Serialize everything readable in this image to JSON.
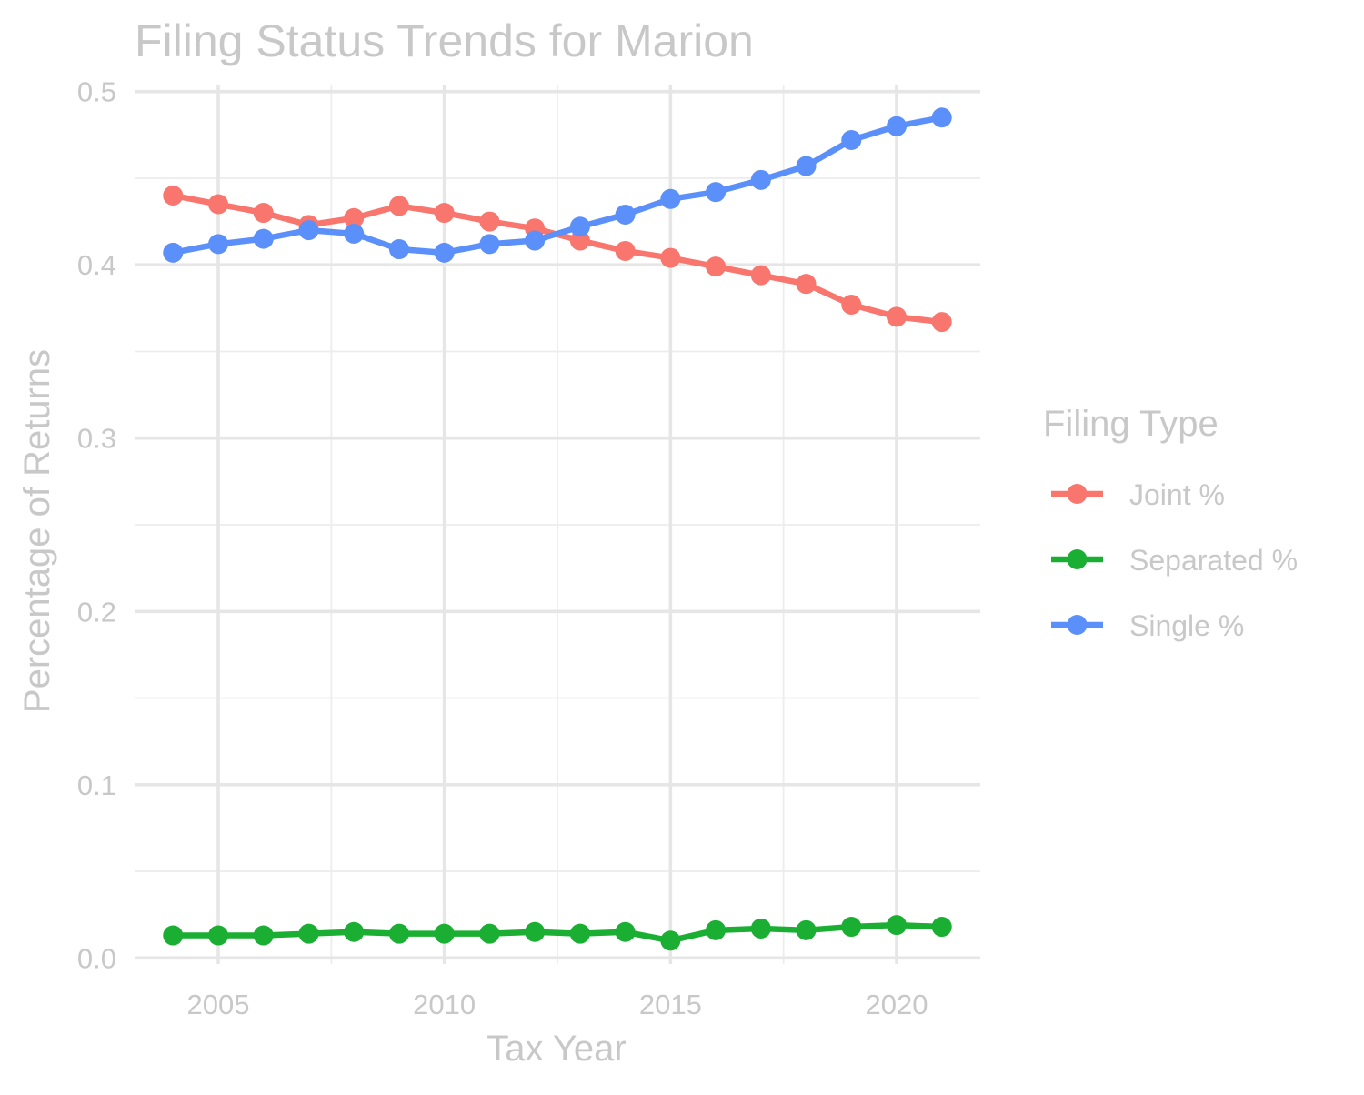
{
  "chart_data": {
    "type": "line",
    "title": "Filing Status Trends for Marion",
    "xlabel": "Tax Year",
    "ylabel": "Percentage of Returns",
    "xlim": [
      2003.15,
      2021.85
    ],
    "ylim": [
      -0.0035,
      0.5035
    ],
    "x_ticks": [
      2005,
      2010,
      2015,
      2020
    ],
    "x_tick_labels": [
      "2005",
      "2010",
      "2015",
      "2020"
    ],
    "x_minor_ticks": [
      2007.5,
      2012.5,
      2017.5
    ],
    "y_ticks": [
      0.0,
      0.1,
      0.2,
      0.3,
      0.4,
      0.5
    ],
    "y_tick_labels": [
      "0.0",
      "0.1",
      "0.2",
      "0.3",
      "0.4",
      "0.5"
    ],
    "y_minor_ticks": [
      0.05,
      0.15,
      0.25,
      0.35,
      0.45
    ],
    "grid": true,
    "legend": {
      "title": "Filing Type",
      "position": "right"
    },
    "x": [
      2004,
      2005,
      2006,
      2007,
      2008,
      2009,
      2010,
      2011,
      2012,
      2013,
      2014,
      2015,
      2016,
      2017,
      2018,
      2019,
      2020,
      2021
    ],
    "series": [
      {
        "name": "Joint %",
        "color": "#F8766D",
        "values": [
          0.44,
          0.435,
          0.43,
          0.423,
          0.427,
          0.434,
          0.43,
          0.425,
          0.421,
          0.414,
          0.408,
          0.404,
          0.399,
          0.394,
          0.389,
          0.377,
          0.37,
          0.367
        ]
      },
      {
        "name": "Separated %",
        "color": "#1AAF32",
        "values": [
          0.013,
          0.013,
          0.013,
          0.014,
          0.015,
          0.014,
          0.014,
          0.014,
          0.015,
          0.014,
          0.015,
          0.01,
          0.016,
          0.017,
          0.016,
          0.018,
          0.019,
          0.018
        ]
      },
      {
        "name": "Single %",
        "color": "#5B8FF9",
        "values": [
          0.407,
          0.412,
          0.415,
          0.42,
          0.418,
          0.409,
          0.407,
          0.412,
          0.414,
          0.422,
          0.429,
          0.438,
          0.442,
          0.449,
          0.457,
          0.472,
          0.48,
          0.485
        ]
      }
    ]
  },
  "colors": {
    "text": "#C8C8C8",
    "grid_major": "#E6E6E6",
    "grid_minor": "#EDEDED",
    "background": "#FFFFFF"
  }
}
